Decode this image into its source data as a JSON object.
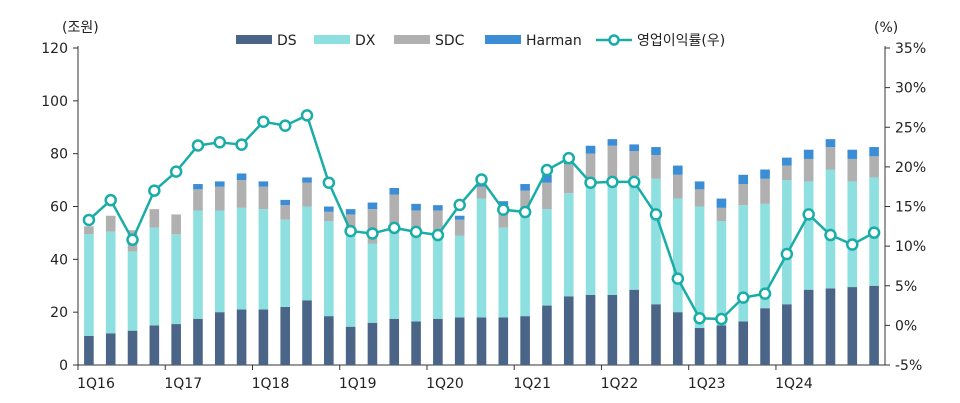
{
  "chart_data": {
    "type": "bar",
    "stacked": true,
    "left_unit": "(조원)",
    "right_unit": "(%)",
    "ylim": [
      0,
      120
    ],
    "y_ticks": [
      0,
      20,
      40,
      60,
      80,
      100,
      120
    ],
    "y2lim": [
      -5,
      35
    ],
    "y2_ticks": [
      -5,
      0,
      5,
      10,
      15,
      20,
      25,
      30,
      35
    ],
    "y2_tick_suffix": "%",
    "x_tick_labels": [
      {
        "index": 0,
        "label": "1Q16"
      },
      {
        "index": 4,
        "label": "1Q17"
      },
      {
        "index": 8,
        "label": "1Q18"
      },
      {
        "index": 12,
        "label": "1Q19"
      },
      {
        "index": 16,
        "label": "1Q20"
      },
      {
        "index": 20,
        "label": "1Q21"
      },
      {
        "index": 24,
        "label": "1Q22"
      },
      {
        "index": 28,
        "label": "1Q23"
      },
      {
        "index": 32,
        "label": "1Q24"
      }
    ],
    "categories": [
      "1Q16",
      "2Q16",
      "3Q16",
      "4Q16",
      "1Q17",
      "2Q17",
      "3Q17",
      "4Q17",
      "1Q18",
      "2Q18",
      "3Q18",
      "4Q18",
      "1Q19",
      "2Q19",
      "3Q19",
      "4Q19",
      "1Q20",
      "2Q20",
      "3Q20",
      "4Q20",
      "1Q21",
      "2Q21",
      "3Q21",
      "4Q21",
      "1Q22",
      "2Q22",
      "3Q22",
      "4Q22",
      "1Q23",
      "2Q23",
      "3Q23",
      "4Q23",
      "1Q24",
      "2Q24",
      "3Q24",
      "4Q24",
      "1Q25"
    ],
    "series": [
      {
        "name": "DS",
        "color": "#4a6587",
        "values": [
          11,
          12,
          13,
          15,
          15.5,
          17.5,
          20,
          21,
          21,
          22,
          24.5,
          18.5,
          14.5,
          16,
          17.5,
          16.5,
          17.5,
          18,
          18,
          18,
          18.5,
          22.5,
          26,
          26.5,
          26.5,
          28.5,
          23,
          20,
          14,
          15,
          16.5,
          21.5,
          23,
          28.5,
          29,
          29.5,
          30
        ]
      },
      {
        "name": "DX",
        "color": "#8edfdf",
        "values": [
          38.5,
          38.5,
          30,
          37,
          34,
          41,
          38.5,
          38.5,
          38,
          33,
          35.5,
          36,
          35,
          30,
          33,
          33,
          31,
          31,
          45,
          34,
          38.5,
          36.5,
          39,
          41,
          42,
          43,
          47.5,
          43,
          46,
          39.5,
          44,
          39.5,
          47,
          41,
          45,
          40,
          41
        ]
      },
      {
        "name": "SDC",
        "color": "#b0b0b0",
        "values": [
          3,
          6,
          8,
          7,
          7.5,
          8,
          9,
          10.5,
          8.5,
          5.5,
          9,
          3.5,
          7.5,
          13,
          14,
          9,
          10,
          6,
          4.5,
          7,
          9,
          10,
          11,
          12.5,
          14.5,
          9.5,
          9,
          9,
          6.5,
          5,
          8,
          9.5,
          5.5,
          8.5,
          8.5,
          8.5,
          8
        ]
      },
      {
        "name": "Harman",
        "color": "#3b8ed6",
        "values": [
          0,
          0,
          0,
          0,
          0,
          2,
          2,
          2.5,
          2,
          2,
          2,
          2,
          2,
          2.5,
          2.5,
          2.5,
          2,
          1.5,
          2.5,
          3,
          2.5,
          3,
          3,
          3,
          2.5,
          2.5,
          3,
          3.5,
          3,
          3.5,
          3.5,
          3.5,
          3,
          3.5,
          3,
          3.5,
          3.5
        ]
      }
    ],
    "line_series": {
      "name": "영업이익률(우)",
      "axis": "right",
      "color": "#1aada8",
      "values": [
        13.3,
        15.8,
        10.8,
        17,
        19.4,
        22.7,
        23.1,
        22.8,
        25.7,
        25.2,
        26.5,
        18,
        11.9,
        11.6,
        12.3,
        11.8,
        11.4,
        15.2,
        18.4,
        14.6,
        14.3,
        19.6,
        21.1,
        18,
        18.1,
        18.1,
        14,
        5.9,
        0.9,
        0.8,
        3.5,
        4,
        9,
        14,
        11.4,
        10.2,
        11.7
      ]
    },
    "legend": {
      "position": "top-center"
    }
  }
}
